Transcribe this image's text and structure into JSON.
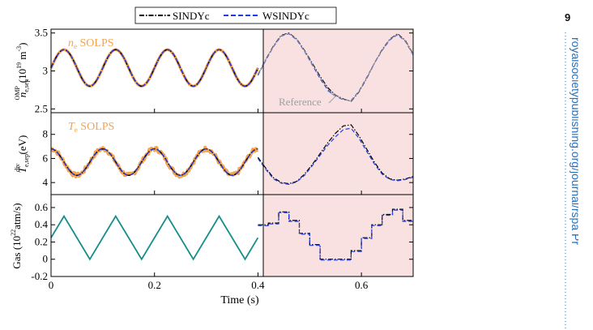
{
  "page": {
    "page_number": "9",
    "side_text": "royalsocietypublishing.org/journal/rspa  Pr",
    "side_text_color": "#2a6fb5"
  },
  "legend": {
    "items": [
      {
        "label": "SINDYc",
        "style": "dash-dot",
        "color": "#000000"
      },
      {
        "label": "WSINDYc",
        "style": "dashed",
        "color": "#1f3de0"
      }
    ]
  },
  "colors": {
    "solps": "#f5a34f",
    "sindyc": "#000000",
    "wsindyc": "#1f3de0",
    "gas": "#168e8a",
    "reference": "#a0a0a0",
    "forecast_region": "#f9e1e1"
  },
  "xaxis": {
    "label": "Time (s)",
    "ticks": [
      "0",
      "0.2",
      "0.4",
      "0.6"
    ],
    "tick_values": [
      0,
      0.2,
      0.4,
      0.6
    ],
    "range": [
      0,
      0.7
    ]
  },
  "panels": {
    "ne": {
      "annotation_main": "n",
      "annotation_sub": "e",
      "annotation_rest": " SOLPS",
      "ylabel_main": "n",
      "ylabel_sub": "e,sep",
      "ylabel_sup": "OMP",
      "ylabel_unit_pre": "(10",
      "ylabel_unit_sup": "19",
      "ylabel_unit_post": " m",
      "ylabel_unit_sup2": "-3",
      "ylabel_unit_close": ")",
      "ticks": [
        "2.5",
        "3",
        "3.5"
      ],
      "tick_values": [
        2.5,
        3.0,
        3.5
      ],
      "range": [
        2.45,
        3.55
      ],
      "reference_label": "Reference"
    },
    "te": {
      "annotation_main": "T",
      "annotation_sub": "e",
      "annotation_rest": " SOLPS",
      "ylabel_main": "T",
      "ylabel_sub": "e,sep",
      "ylabel_sup": "div",
      "ylabel_unit": " (eV)",
      "ticks": [
        "4",
        "6",
        "8"
      ],
      "tick_values": [
        4,
        6,
        8
      ],
      "range": [
        3.0,
        9.8
      ]
    },
    "gas": {
      "ylabel_pre": "Gas (10",
      "ylabel_sup": "22",
      "ylabel_post": "atm/s)",
      "ticks": [
        "-0.2",
        "0",
        "0.2",
        "0.4",
        "0.6"
      ],
      "tick_values": [
        -0.2,
        0.0,
        0.2,
        0.4,
        0.6
      ],
      "range": [
        -0.2,
        0.75
      ]
    }
  },
  "chart_data": [
    {
      "type": "line",
      "panel": "ne",
      "ylim": [
        2.45,
        3.55
      ],
      "training": {
        "x_range": [
          0,
          0.4
        ],
        "model": "sine",
        "center": 3.04,
        "amplitude": 0.24,
        "period": 0.1,
        "phase_offset": 0.025,
        "series": [
          "SOLPS",
          "SINDYc",
          "WSINDYc"
        ]
      },
      "forecast": {
        "x": [
          0.4,
          0.415,
          0.43,
          0.445,
          0.46,
          0.475,
          0.49,
          0.505,
          0.52,
          0.535,
          0.55,
          0.565,
          0.58,
          0.595,
          0.61,
          0.625,
          0.64,
          0.655,
          0.67,
          0.685,
          0.7
        ],
        "sindyc": [
          2.95,
          3.15,
          3.33,
          3.47,
          3.5,
          3.42,
          3.27,
          3.1,
          2.93,
          2.78,
          2.68,
          2.63,
          2.6,
          2.72,
          2.9,
          3.1,
          3.28,
          3.42,
          3.49,
          3.4,
          3.22
        ],
        "wsindyc": [
          2.94,
          3.14,
          3.32,
          3.46,
          3.49,
          3.41,
          3.26,
          3.08,
          2.9,
          2.75,
          2.67,
          2.62,
          2.61,
          2.73,
          2.91,
          3.1,
          3.27,
          3.41,
          3.48,
          3.39,
          3.21
        ]
      }
    },
    {
      "type": "line",
      "panel": "te",
      "ylim": [
        3.0,
        9.8
      ],
      "training": {
        "x_range": [
          0,
          0.4
        ],
        "model": "sine",
        "center": 5.7,
        "amplitude": 1.1,
        "period": 0.1,
        "phase_offset": 0.0,
        "solps_noise": 0.35,
        "series": [
          "SOLPS",
          "SINDYc",
          "WSINDYc"
        ]
      },
      "forecast": {
        "x": [
          0.4,
          0.415,
          0.43,
          0.445,
          0.46,
          0.475,
          0.49,
          0.505,
          0.52,
          0.535,
          0.55,
          0.565,
          0.58,
          0.595,
          0.61,
          0.625,
          0.64,
          0.655,
          0.67,
          0.685,
          0.7
        ],
        "sindyc": [
          6.1,
          5.2,
          4.4,
          4.0,
          3.9,
          4.1,
          4.7,
          5.5,
          6.4,
          7.3,
          8.1,
          8.7,
          8.8,
          7.9,
          6.8,
          5.7,
          4.8,
          4.3,
          4.2,
          4.3,
          4.5
        ],
        "wsindyc": [
          6.0,
          5.1,
          4.3,
          3.95,
          3.85,
          4.05,
          4.6,
          5.4,
          6.25,
          7.1,
          7.8,
          8.4,
          8.5,
          7.7,
          6.6,
          5.55,
          4.7,
          4.25,
          4.15,
          4.25,
          4.45
        ]
      }
    },
    {
      "type": "line",
      "panel": "gas",
      "ylim": [
        -0.2,
        0.75
      ],
      "training": {
        "x": [
          0,
          0.025,
          0.075,
          0.125,
          0.175,
          0.225,
          0.275,
          0.325,
          0.375,
          0.4
        ],
        "y": [
          0.25,
          0.5,
          0.0,
          0.5,
          0.0,
          0.5,
          0.0,
          0.5,
          0.0,
          0.25
        ]
      },
      "forecast": {
        "steps": [
          [
            0.4,
            0.4
          ],
          [
            0.42,
            0.42
          ],
          [
            0.44,
            0.55
          ],
          [
            0.46,
            0.45
          ],
          [
            0.48,
            0.3
          ],
          [
            0.5,
            0.17
          ],
          [
            0.52,
            0.0
          ],
          [
            0.54,
            0.0
          ],
          [
            0.56,
            0.0
          ],
          [
            0.58,
            0.1
          ],
          [
            0.6,
            0.25
          ],
          [
            0.62,
            0.4
          ],
          [
            0.64,
            0.52
          ],
          [
            0.66,
            0.58
          ],
          [
            0.68,
            0.45
          ],
          [
            0.7,
            0.45
          ]
        ]
      }
    }
  ]
}
